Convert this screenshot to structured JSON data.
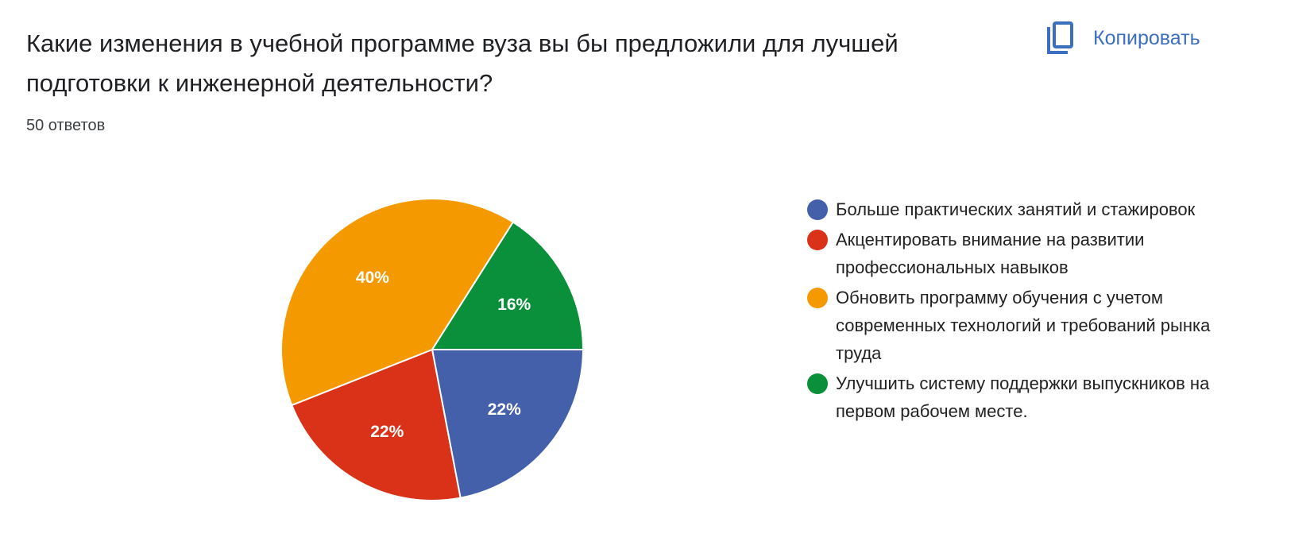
{
  "question": {
    "title": "Какие изменения в учебной программе вуза вы бы предложили для лучшей подготовки к инженерной деятельности?",
    "responses": "50 ответов"
  },
  "toolbar": {
    "copy_label": "Копировать",
    "copy_icon": "copy-icon",
    "accent": "#3c6fbf"
  },
  "chart_data": {
    "type": "pie",
    "start": "3 o'clock, clockwise",
    "legend_position": "right",
    "categories": [
      "Больше практических занятий и стажировок",
      "Акцентировать внимание на развитии профессиональных навыков",
      "Обновить программу обучения с учетом современных технологий и требований рынка труда",
      "Улучшить систему поддержки выпускников на первом рабочем месте."
    ],
    "values": [
      22,
      22,
      40,
      16
    ],
    "labels": [
      "22%",
      "22%",
      "40%",
      "16%"
    ],
    "colors": [
      "#4460ab",
      "#d93218",
      "#f49a00",
      "#0a8f3a"
    ]
  }
}
